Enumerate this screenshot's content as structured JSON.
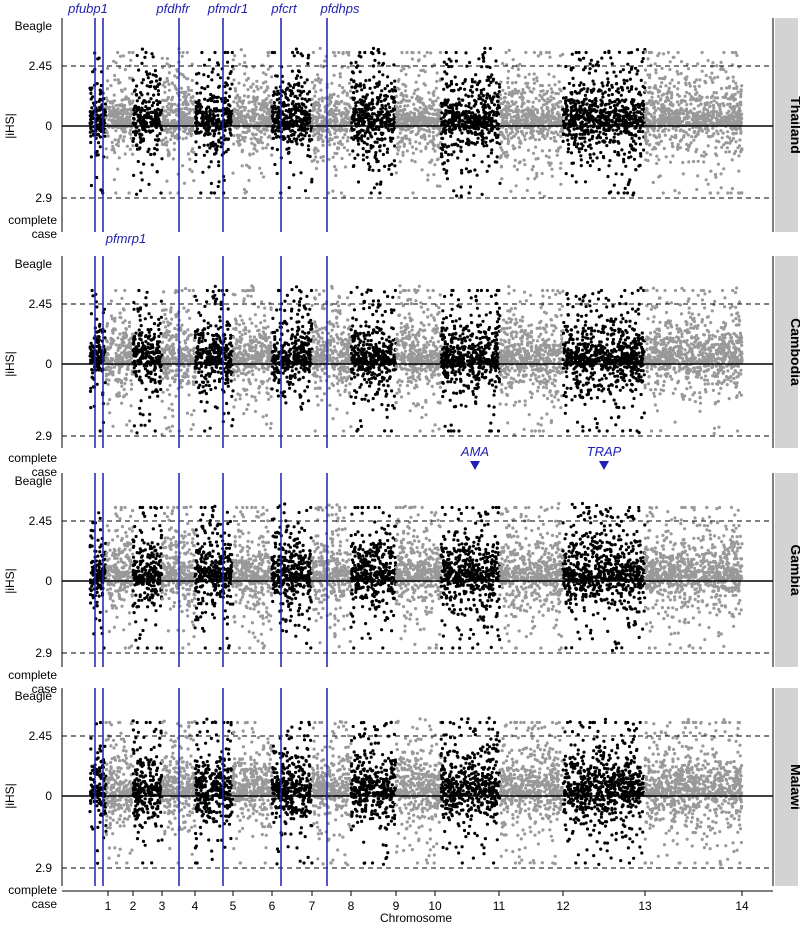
{
  "chart_data": {
    "type": "scatter",
    "xlabel": "Chromosome",
    "ylabel": "|iHS|",
    "x_ticks": [
      "1",
      "2",
      "3",
      "4",
      "5",
      "6",
      "7",
      "8",
      "9",
      "10",
      "11",
      "12",
      "13",
      "14"
    ],
    "y_ticks": {
      "upper_threshold": "2.45",
      "zero": "0",
      "lower_threshold": "2.9"
    },
    "y_axis_top_label": "Beagle",
    "y_axis_bottom_label": [
      "complete",
      "case"
    ],
    "panels": [
      "Thailand",
      "Cambodia",
      "Gambia",
      "Malawi"
    ],
    "genes": [
      {
        "name": "pfubp1",
        "chromosome": 1
      },
      {
        "name": "pfmrp1",
        "chromosome": 1
      },
      {
        "name": "pfdhfr",
        "chromosome": 4
      },
      {
        "name": "pfmdr1",
        "chromosome": 5
      },
      {
        "name": "pfcrt",
        "chromosome": 7
      },
      {
        "name": "pfdhps",
        "chromosome": 8
      }
    ],
    "annotations": [
      {
        "panel": "Gambia",
        "label": "AMA",
        "chromosome": 11
      },
      {
        "panel": "Gambia",
        "label": "TRAP",
        "chromosome": 13
      }
    ],
    "legend": "none",
    "colors": {
      "odd_chromosome": "#000000",
      "even_chromosome": "#999999",
      "gene_line": "#1f1fb0",
      "strip": "#d3d3d3"
    }
  }
}
